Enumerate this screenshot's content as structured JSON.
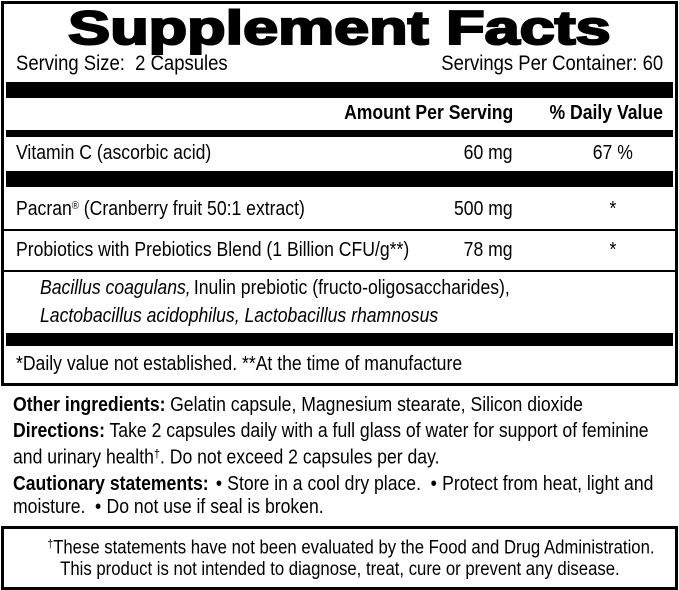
{
  "colors": {
    "ink": "#000000",
    "paper": "#ffffff"
  },
  "facts_panel": {
    "title": "Supplement Facts",
    "serving": {
      "size_label": "Serving Size:",
      "size_value": "2 Capsules",
      "per_container_label": "Servings Per Container:",
      "per_container_value": "60"
    },
    "columns": {
      "amount": "Amount Per Serving",
      "daily_value": "% Daily Value"
    },
    "rows": {
      "vitamin_c": {
        "name": "Vitamin C (ascorbic acid)",
        "amount": "60 mg",
        "dv": "67 %"
      },
      "pacran": {
        "name": "Pacran",
        "trademark": "®",
        "name_detail": "(Cranberry fruit 50:1 extract)",
        "amount": "500 mg",
        "dv": "*"
      },
      "probiotics": {
        "name": "Probiotics with Prebiotics Blend (1 Billion CFU/g**)",
        "amount": "78 mg",
        "dv": "*"
      }
    },
    "sub_ingredients": {
      "line1_italic": "Bacillus coagulans,",
      "line1_regular": "Inulin prebiotic (fructo-oligosaccharides),",
      "line2_italic": "Lactobacillus acidophilus, Lactobacillus rhamnosus"
    },
    "footnote": "*Daily value not established. **At the time of manufacture"
  },
  "other_ingredients": {
    "label": "Other ingredients:",
    "text": "Gelatin capsule, Magnesium stearate, Silicon dioxide"
  },
  "directions": {
    "label": "Directions:",
    "before_dagger": "Take 2 capsules daily with a full glass of water for support of feminine and urinary health",
    "dagger": "†",
    "after_dagger": ". Do not exceed 2 capsules per day."
  },
  "cautionary": {
    "label": "Cautionary statements:",
    "bullet": "•",
    "item1": "Store in a cool dry place.",
    "item2": "Protect from heat, light and moisture.",
    "item3": "Do not use if seal is broken."
  },
  "disclaimer": {
    "dagger": "†",
    "line1": "These statements have not been evaluated by the Food and Drug Administration.",
    "line2": "This product is not intended to diagnose, treat, cure or prevent any disease."
  }
}
